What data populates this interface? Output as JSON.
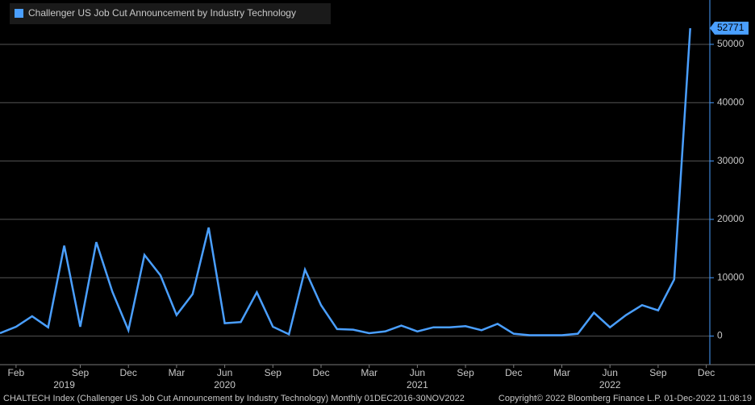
{
  "chart_data": {
    "type": "line",
    "legend": "Challenger US Job Cut Announcement by Industry Technology",
    "footer_left": "CHALTECH Index (Challenger US Job Cut Announcement by Industry Technology)  Monthly 01DEC2016-30NOV2022",
    "footer_right": "Copyright© 2022 Bloomberg Finance L.P.   01-Dec-2022 11:08:19",
    "categories": [
      null,
      "Feb",
      null,
      null,
      null,
      "Sep",
      null,
      null,
      "Dec",
      null,
      null,
      "Mar",
      null,
      null,
      "Jun",
      null,
      null,
      "Sep",
      null,
      null,
      "Dec",
      null,
      null,
      "Mar",
      null,
      null,
      "Jun",
      null,
      null,
      "Sep",
      null,
      null,
      "Dec",
      null,
      null,
      "Mar",
      null,
      null,
      "Jun",
      null,
      null,
      "Sep",
      null,
      null,
      "Dec"
    ],
    "years": [
      {
        "label": "2019",
        "index": 4
      },
      {
        "label": "2020",
        "index": 14
      },
      {
        "label": "2021",
        "index": 26
      },
      {
        "label": "2022",
        "index": 38
      }
    ],
    "series": [
      {
        "name": "Challenger US Job Cut Announcement by Industry Technology",
        "color": "#4a9fff",
        "values": [
          500,
          1600,
          3400,
          1500,
          15500,
          1600,
          16100,
          7600,
          1000,
          13900,
          10400,
          3600,
          7200,
          18600,
          2200,
          2400,
          7500,
          1600,
          300,
          11400,
          5300,
          1200,
          1100,
          500,
          800,
          1800,
          800,
          1500,
          1500,
          1700,
          1000,
          2100,
          400,
          150,
          150,
          150,
          400,
          4000,
          1500,
          3600,
          5300,
          4400,
          9700,
          52771,
          null
        ]
      }
    ],
    "last_value_label": "52771",
    "ylim": [
      -4900,
      57600
    ],
    "yticks": [
      0,
      10000,
      20000,
      30000,
      40000,
      50000
    ],
    "grid": true
  }
}
